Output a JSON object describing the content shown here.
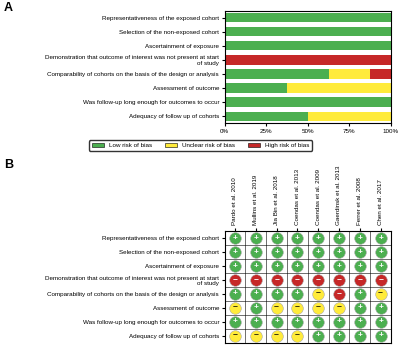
{
  "chart_data": [
    {
      "type": "bar",
      "title": "A",
      "orientation": "horizontal",
      "stacked": true,
      "categories": [
        "Representativeness of the exposed cohort",
        "Selection of the non-exposed cohort",
        "Ascertainment of exposure",
        "Demonstration that outcome of interest was not present at start of study",
        "Comparability of cohorts on the basis of the design or analysis",
        "Assessment of outcome",
        "Was follow-up long enough for outcomes to occur",
        "Adequacy of follow up of cohorts"
      ],
      "series": [
        {
          "name": "Low risk of bias",
          "color": "#4CAF50",
          "values": [
            100,
            100,
            100,
            0,
            62.5,
            37.5,
            100,
            50
          ]
        },
        {
          "name": "Unclear risk of bias",
          "color": "#FFEB3B",
          "values": [
            0,
            0,
            0,
            0,
            25,
            62.5,
            0,
            50
          ]
        },
        {
          "name": "High risk of bias",
          "color": "#C62828",
          "values": [
            0,
            0,
            0,
            100,
            12.5,
            0,
            0,
            0
          ]
        }
      ],
      "xlim": [
        0,
        100
      ],
      "xticks": [
        {
          "value": 0,
          "label": "0%"
        },
        {
          "value": 25,
          "label": "25%"
        },
        {
          "value": 50,
          "label": "50%"
        },
        {
          "value": 75,
          "label": "75%"
        },
        {
          "value": 100,
          "label": "100%"
        }
      ],
      "legend": "upper center"
    },
    {
      "type": "matrix",
      "title": "B",
      "x": [
        "Pardo et al. 2010",
        "Mullins et al. 2019",
        "Jia Bin et al. 2018",
        "Coendas et al. 2013",
        "Coendas et al. 2009",
        "Gaerdinsk et al. 2013",
        "Ferrer et al. 2008",
        "Chen et al. 2017"
      ],
      "y": [
        "Representativeness of the exposed cohort",
        "Selection of the non-exposed cohort",
        "Ascertainment of exposure",
        "Demonstration that outcome of interest was not present at start of study",
        "Comparability of cohorts on the basis of the design or analysis",
        "Assessment of outcome",
        "Was follow-up long enough for outcomes to occur",
        "Adequacy of follow up of cohorts"
      ],
      "cells": [
        [
          "+",
          "+",
          "+",
          "+",
          "+",
          "+",
          "+",
          "+"
        ],
        [
          "+",
          "+",
          "+",
          "+",
          "+",
          "+",
          "+",
          "+"
        ],
        [
          "+",
          "+",
          "+",
          "+",
          "+",
          "+",
          "+",
          "+"
        ],
        [
          "−",
          "−",
          "−",
          "−",
          "−",
          "−",
          "−",
          "−"
        ],
        [
          "+",
          "+",
          "+",
          "+",
          "~",
          "−",
          "+",
          "~"
        ],
        [
          "~",
          "+",
          "~",
          "~",
          "~",
          "~",
          "+",
          "+"
        ],
        [
          "+",
          "+",
          "+",
          "+",
          "+",
          "+",
          "+",
          "+"
        ],
        [
          "~",
          "~",
          "~",
          "~",
          "+",
          "+",
          "+",
          "+"
        ]
      ],
      "colors": {
        "+": "#4CAF50",
        "~": "#FFEB3B",
        "−": "#C62828"
      }
    }
  ]
}
